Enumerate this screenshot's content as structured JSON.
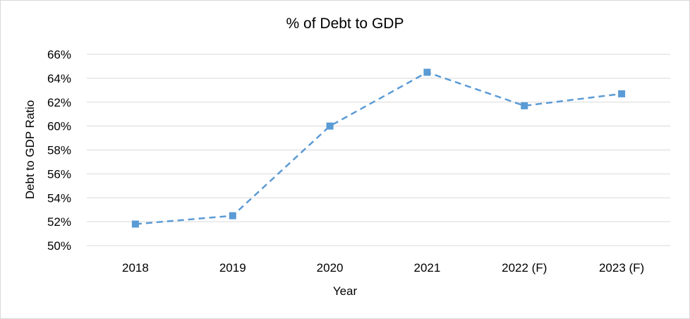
{
  "chart_data": {
    "type": "line",
    "title": "% of Debt to GDP",
    "xlabel": "Year",
    "ylabel": "Debt to GDP Ratio",
    "categories": [
      "2018",
      "2019",
      "2020",
      "2021",
      "2022 (F)",
      "2023 (F)"
    ],
    "series": [
      {
        "values": [
          51.8,
          52.5,
          60.0,
          64.5,
          61.7,
          62.7
        ]
      }
    ],
    "ylim": [
      50,
      66
    ],
    "yticks": [
      50,
      52,
      54,
      56,
      58,
      60,
      62,
      64,
      66
    ],
    "ytick_labels": [
      "50%",
      "52%",
      "54%",
      "56%",
      "58%",
      "60%",
      "62%",
      "64%",
      "66%"
    ],
    "grid": "horizontal",
    "legend": "none",
    "line_style": "dashed",
    "marker": "square",
    "colors": {
      "series": "#5b9bd5",
      "grid": "#d9d9d9",
      "frame": "#d9d9d9"
    }
  }
}
